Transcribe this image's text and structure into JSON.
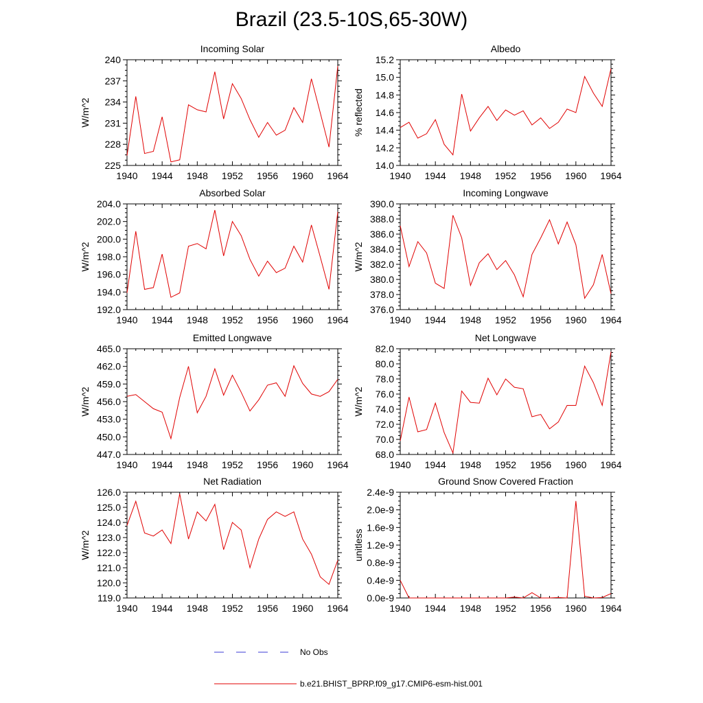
{
  "page_title": "Brazil (23.5-10S,65-30W)",
  "legend": {
    "obs_label": "No Obs",
    "obs_color": "#3b3bd6",
    "model_label": "b.e21.BHIST_BPRP.f09_g17.CMIP6-esm-hist.001",
    "model_color": "#e00000"
  },
  "chart_data": [
    {
      "type": "line",
      "title": "Incoming Solar",
      "ylabel": "W/m^2",
      "xlim": [
        1940,
        1964
      ],
      "ylim": [
        225,
        240
      ],
      "xticks": [
        1940,
        1944,
        1948,
        1952,
        1956,
        1960,
        1964
      ],
      "xtick_labels": [
        "1940",
        "1944",
        "1948",
        "1952",
        "1956",
        "1960",
        "1964"
      ],
      "yticks": [
        225,
        228,
        231,
        234,
        237,
        240
      ],
      "ytick_labels": [
        "225",
        "228",
        "231",
        "234",
        "237",
        "240"
      ],
      "x": [
        1940,
        1941,
        1942,
        1943,
        1944,
        1945,
        1946,
        1947,
        1948,
        1949,
        1950,
        1951,
        1952,
        1953,
        1954,
        1955,
        1956,
        1957,
        1958,
        1959,
        1960,
        1961,
        1962,
        1963,
        1964
      ],
      "series": [
        {
          "name": "b.e21.BHIST_BPRP.f09_g17.CMIP6-esm-hist.001",
          "values": [
            226.4,
            234.8,
            226.7,
            227.0,
            231.9,
            225.5,
            225.8,
            233.6,
            232.9,
            232.6,
            238.3,
            231.6,
            236.6,
            234.5,
            231.5,
            229.0,
            231.1,
            229.3,
            230.0,
            233.2,
            231.1,
            237.3,
            232.5,
            227.6,
            239.1
          ]
        }
      ]
    },
    {
      "type": "line",
      "title": "Albedo",
      "ylabel": "% reflected",
      "xlim": [
        1940,
        1964
      ],
      "ylim": [
        14.0,
        15.2
      ],
      "xticks": [
        1940,
        1944,
        1948,
        1952,
        1956,
        1960,
        1964
      ],
      "xtick_labels": [
        "1940",
        "1944",
        "1948",
        "1952",
        "1956",
        "1960",
        "1964"
      ],
      "yticks": [
        14.0,
        14.2,
        14.4,
        14.6,
        14.8,
        15.0,
        15.2
      ],
      "ytick_labels": [
        "14.0",
        "14.2",
        "14.4",
        "14.6",
        "14.8",
        "15.0",
        "15.2"
      ],
      "x": [
        1940,
        1941,
        1942,
        1943,
        1944,
        1945,
        1946,
        1947,
        1948,
        1949,
        1950,
        1951,
        1952,
        1953,
        1954,
        1955,
        1956,
        1957,
        1958,
        1959,
        1960,
        1961,
        1962,
        1963,
        1964
      ],
      "series": [
        {
          "name": "b.e21.BHIST_BPRP.f09_g17.CMIP6-esm-hist.001",
          "values": [
            14.43,
            14.49,
            14.31,
            14.36,
            14.52,
            14.24,
            14.12,
            14.81,
            14.39,
            14.54,
            14.67,
            14.51,
            14.63,
            14.57,
            14.62,
            14.46,
            14.54,
            14.42,
            14.49,
            14.64,
            14.6,
            15.01,
            14.82,
            14.67,
            15.1
          ]
        }
      ]
    },
    {
      "type": "line",
      "title": "Absorbed Solar",
      "ylabel": "W/m^2",
      "xlim": [
        1940,
        1964
      ],
      "ylim": [
        192.0,
        204.0
      ],
      "xticks": [
        1940,
        1944,
        1948,
        1952,
        1956,
        1960,
        1964
      ],
      "xtick_labels": [
        "1940",
        "1944",
        "1948",
        "1952",
        "1956",
        "1960",
        "1964"
      ],
      "yticks": [
        192.0,
        194.0,
        196.0,
        198.0,
        200.0,
        202.0,
        204.0
      ],
      "ytick_labels": [
        "192.0",
        "194.0",
        "196.0",
        "198.0",
        "200.0",
        "202.0",
        "204.0"
      ],
      "x": [
        1940,
        1941,
        1942,
        1943,
        1944,
        1945,
        1946,
        1947,
        1948,
        1949,
        1950,
        1951,
        1952,
        1953,
        1954,
        1955,
        1956,
        1957,
        1958,
        1959,
        1960,
        1961,
        1962,
        1963,
        1964
      ],
      "series": [
        {
          "name": "b.e21.BHIST_BPRP.f09_g17.CMIP6-esm-hist.001",
          "values": [
            193.9,
            200.9,
            194.3,
            194.5,
            198.3,
            193.4,
            193.9,
            199.2,
            199.5,
            198.9,
            203.3,
            198.1,
            202.0,
            200.4,
            197.7,
            195.8,
            197.5,
            196.2,
            196.7,
            199.2,
            197.4,
            201.6,
            198.0,
            194.3,
            203.1
          ]
        }
      ]
    },
    {
      "type": "line",
      "title": "Incoming Longwave",
      "ylabel": "W/m^2",
      "xlim": [
        1940,
        1964
      ],
      "ylim": [
        376.0,
        390.0
      ],
      "xticks": [
        1940,
        1944,
        1948,
        1952,
        1956,
        1960,
        1964
      ],
      "xtick_labels": [
        "1940",
        "1944",
        "1948",
        "1952",
        "1956",
        "1960",
        "1964"
      ],
      "yticks": [
        376.0,
        378.0,
        380.0,
        382.0,
        384.0,
        386.0,
        388.0,
        390.0
      ],
      "ytick_labels": [
        "376.0",
        "378.0",
        "380.0",
        "382.0",
        "384.0",
        "386.0",
        "388.0",
        "390.0"
      ],
      "x": [
        1940,
        1941,
        1942,
        1943,
        1944,
        1945,
        1946,
        1947,
        1948,
        1949,
        1950,
        1951,
        1952,
        1953,
        1954,
        1955,
        1956,
        1957,
        1958,
        1959,
        1960,
        1961,
        1962,
        1963,
        1964
      ],
      "series": [
        {
          "name": "b.e21.BHIST_BPRP.f09_g17.CMIP6-esm-hist.001",
          "values": [
            387.1,
            381.7,
            385.0,
            383.5,
            379.5,
            378.8,
            388.5,
            385.5,
            379.2,
            382.2,
            383.4,
            381.3,
            382.5,
            380.6,
            377.7,
            383.3,
            385.5,
            387.9,
            384.7,
            387.6,
            384.6,
            377.5,
            379.3,
            383.3,
            378.1
          ]
        }
      ]
    },
    {
      "type": "line",
      "title": "Emitted Longwave",
      "ylabel": "W/m^2",
      "xlim": [
        1940,
        1964
      ],
      "ylim": [
        447.0,
        465.0
      ],
      "xticks": [
        1940,
        1944,
        1948,
        1952,
        1956,
        1960,
        1964
      ],
      "xtick_labels": [
        "1940",
        "1944",
        "1948",
        "1952",
        "1956",
        "1960",
        "1964"
      ],
      "yticks": [
        447.0,
        450.0,
        453.0,
        456.0,
        459.0,
        462.0,
        465.0
      ],
      "ytick_labels": [
        "447.0",
        "450.0",
        "453.0",
        "456.0",
        "459.0",
        "462.0",
        "465.0"
      ],
      "x": [
        1940,
        1941,
        1942,
        1943,
        1944,
        1945,
        1946,
        1947,
        1948,
        1949,
        1950,
        1951,
        1952,
        1953,
        1954,
        1955,
        1956,
        1957,
        1958,
        1959,
        1960,
        1961,
        1962,
        1963,
        1964
      ],
      "series": [
        {
          "name": "b.e21.BHIST_BPRP.f09_g17.CMIP6-esm-hist.001",
          "values": [
            456.9,
            457.2,
            456.0,
            454.8,
            454.2,
            449.7,
            456.7,
            462.0,
            454.1,
            456.9,
            461.6,
            457.1,
            460.5,
            457.6,
            454.4,
            456.3,
            458.8,
            459.2,
            456.9,
            462.1,
            459.1,
            457.3,
            456.9,
            457.7,
            459.8
          ]
        }
      ]
    },
    {
      "type": "line",
      "title": "Net Longwave",
      "ylabel": "W/m^2",
      "xlim": [
        1940,
        1964
      ],
      "ylim": [
        68.0,
        82.0
      ],
      "xticks": [
        1940,
        1944,
        1948,
        1952,
        1956,
        1960,
        1964
      ],
      "xtick_labels": [
        "1940",
        "1944",
        "1948",
        "1952",
        "1956",
        "1960",
        "1964"
      ],
      "yticks": [
        68.0,
        70.0,
        72.0,
        74.0,
        76.0,
        78.0,
        80.0,
        82.0
      ],
      "ytick_labels": [
        "68.0",
        "70.0",
        "72.0",
        "74.0",
        "76.0",
        "78.0",
        "80.0",
        "82.0"
      ],
      "x": [
        1940,
        1941,
        1942,
        1943,
        1944,
        1945,
        1946,
        1947,
        1948,
        1949,
        1950,
        1951,
        1952,
        1953,
        1954,
        1955,
        1956,
        1957,
        1958,
        1959,
        1960,
        1961,
        1962,
        1963,
        1964
      ],
      "series": [
        {
          "name": "b.e21.BHIST_BPRP.f09_g17.CMIP6-esm-hist.001",
          "values": [
            69.8,
            75.6,
            71.0,
            71.3,
            74.8,
            70.9,
            68.2,
            76.4,
            74.9,
            74.8,
            78.1,
            75.9,
            78.0,
            76.9,
            76.7,
            73.0,
            73.3,
            71.4,
            72.3,
            74.5,
            74.5,
            79.7,
            77.5,
            74.5,
            81.6
          ]
        }
      ]
    },
    {
      "type": "line",
      "title": "Net Radiation",
      "ylabel": "W/m^2",
      "xlim": [
        1940,
        1964
      ],
      "ylim": [
        119.0,
        126.0
      ],
      "xticks": [
        1940,
        1944,
        1948,
        1952,
        1956,
        1960,
        1964
      ],
      "xtick_labels": [
        "1940",
        "1944",
        "1948",
        "1952",
        "1956",
        "1960",
        "1964"
      ],
      "yticks": [
        119.0,
        120.0,
        121.0,
        122.0,
        123.0,
        124.0,
        125.0,
        126.0
      ],
      "ytick_labels": [
        "119.0",
        "120.0",
        "121.0",
        "122.0",
        "123.0",
        "124.0",
        "125.0",
        "126.0"
      ],
      "x": [
        1940,
        1941,
        1942,
        1943,
        1944,
        1945,
        1946,
        1947,
        1948,
        1949,
        1950,
        1951,
        1952,
        1953,
        1954,
        1955,
        1956,
        1957,
        1958,
        1959,
        1960,
        1961,
        1962,
        1963,
        1964
      ],
      "series": [
        {
          "name": "b.e21.BHIST_BPRP.f09_g17.CMIP6-esm-hist.001",
          "values": [
            123.8,
            125.4,
            123.3,
            123.1,
            123.5,
            122.6,
            125.9,
            122.9,
            124.7,
            124.1,
            125.2,
            122.2,
            124.0,
            123.5,
            121.0,
            122.9,
            124.2,
            124.7,
            124.4,
            124.7,
            122.9,
            121.9,
            120.4,
            119.9,
            121.5
          ]
        }
      ]
    },
    {
      "type": "line",
      "title": "Ground Snow Covered Fraction",
      "ylabel": "unitless",
      "xlim": [
        1940,
        1964
      ],
      "ylim": [
        0.0,
        2.4e-09
      ],
      "xticks": [
        1940,
        1944,
        1948,
        1952,
        1956,
        1960,
        1964
      ],
      "xtick_labels": [
        "1940",
        "1944",
        "1948",
        "1952",
        "1956",
        "1960",
        "1964"
      ],
      "yticks": [
        0.0,
        4e-10,
        8e-10,
        1.2e-09,
        1.6e-09,
        2e-09,
        2.4e-09
      ],
      "ytick_labels": [
        "0.0e-9",
        "0.4e-9",
        "0.8e-9",
        "1.2e-9",
        "1.6e-9",
        "2.0e-9",
        "2.4e-9"
      ],
      "x": [
        1940,
        1941,
        1942,
        1943,
        1944,
        1945,
        1946,
        1947,
        1948,
        1949,
        1950,
        1951,
        1952,
        1953,
        1954,
        1955,
        1956,
        1957,
        1958,
        1959,
        1960,
        1961,
        1962,
        1963,
        1964
      ],
      "series": [
        {
          "name": "b.e21.BHIST_BPRP.f09_g17.CMIP6-esm-hist.001",
          "values": [
            4e-10,
            0,
            0,
            0,
            0,
            0,
            0,
            0,
            0,
            0,
            0,
            0,
            0,
            2e-11,
            0,
            1.2e-10,
            0,
            0,
            1e-11,
            0,
            2.2e-09,
            4e-11,
            0,
            1e-11,
            1e-10
          ]
        }
      ]
    }
  ]
}
